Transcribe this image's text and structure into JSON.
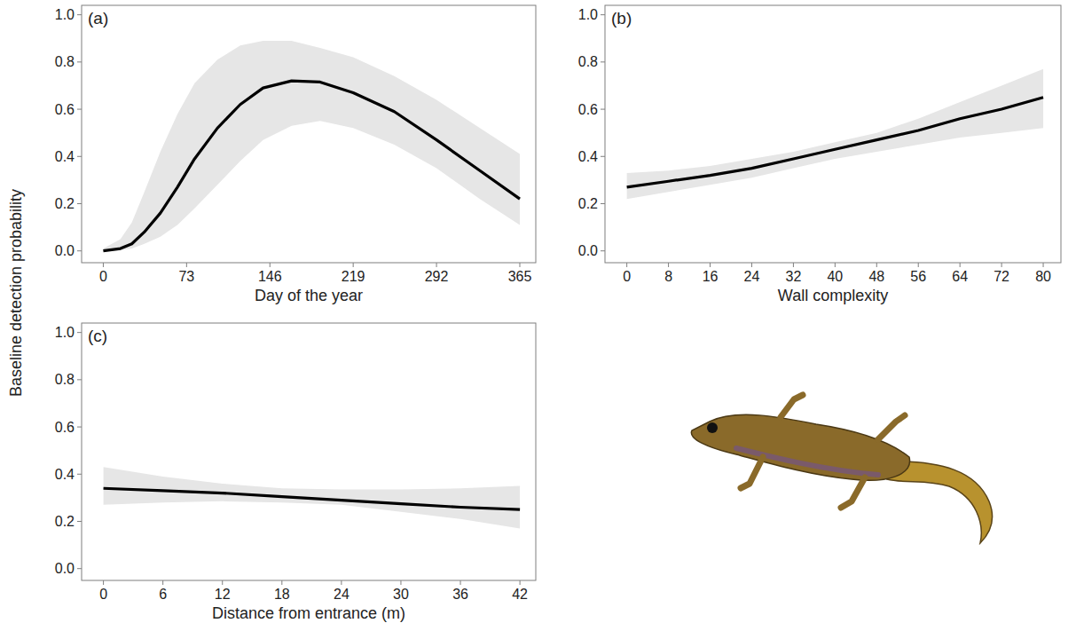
{
  "ylabel": "Baseline detection probability",
  "chart_data": [
    {
      "type": "line",
      "panel_label": "(a)",
      "xlabel": "Day of the year",
      "color": "#000000",
      "grid": false,
      "x": [
        0,
        15,
        25,
        36,
        50,
        65,
        80,
        100,
        120,
        140,
        165,
        190,
        219,
        255,
        292,
        330,
        365
      ],
      "values": [
        0.0,
        0.01,
        0.03,
        0.08,
        0.16,
        0.27,
        0.39,
        0.52,
        0.62,
        0.69,
        0.72,
        0.715,
        0.67,
        0.59,
        0.47,
        0.34,
        0.22
      ],
      "lower": [
        0.0,
        0.003,
        0.01,
        0.03,
        0.06,
        0.11,
        0.18,
        0.28,
        0.38,
        0.47,
        0.53,
        0.55,
        0.52,
        0.45,
        0.35,
        0.22,
        0.11
      ],
      "upper": [
        0.01,
        0.05,
        0.12,
        0.25,
        0.42,
        0.58,
        0.71,
        0.81,
        0.87,
        0.89,
        0.89,
        0.86,
        0.82,
        0.74,
        0.64,
        0.52,
        0.41
      ],
      "xlim": [
        -19,
        379
      ],
      "xticks": [
        0,
        73,
        146,
        219,
        292,
        365
      ],
      "ylim": [
        -0.05,
        1.04
      ],
      "yticks": [
        {
          "value": 0,
          "label": "0.0"
        },
        0.2,
        0.4,
        0.6,
        0.8,
        {
          "value": 1,
          "label": "1.0"
        }
      ]
    },
    {
      "type": "line",
      "panel_label": "(b)",
      "xlabel": "Wall complexity",
      "color": "#000000",
      "grid": false,
      "x": [
        0,
        8,
        16,
        24,
        32,
        40,
        48,
        56,
        64,
        72,
        80
      ],
      "values": [
        0.27,
        0.295,
        0.32,
        0.35,
        0.39,
        0.43,
        0.47,
        0.51,
        0.56,
        0.6,
        0.65
      ],
      "lower": [
        0.22,
        0.25,
        0.28,
        0.31,
        0.35,
        0.39,
        0.42,
        0.45,
        0.48,
        0.5,
        0.52
      ],
      "upper": [
        0.33,
        0.34,
        0.36,
        0.39,
        0.42,
        0.46,
        0.5,
        0.56,
        0.63,
        0.7,
        0.77
      ],
      "xlim": [
        -4.2,
        83.4
      ],
      "xticks": [
        0,
        8,
        16,
        24,
        32,
        40,
        48,
        56,
        64,
        72,
        80
      ],
      "ylim": [
        -0.05,
        1.04
      ],
      "yticks": [
        {
          "value": 0,
          "label": "0.0"
        },
        0.2,
        0.4,
        0.6,
        0.8,
        {
          "value": 1,
          "label": "1.0"
        }
      ]
    },
    {
      "type": "line",
      "panel_label": "(c)",
      "xlabel": "Distance from entrance (m)",
      "color": "#000000",
      "grid": false,
      "x": [
        0,
        6,
        12,
        18,
        24,
        30,
        36,
        42
      ],
      "values": [
        0.34,
        0.33,
        0.32,
        0.305,
        0.29,
        0.275,
        0.26,
        0.25
      ],
      "lower": [
        0.27,
        0.28,
        0.285,
        0.28,
        0.27,
        0.24,
        0.21,
        0.17
      ],
      "upper": [
        0.43,
        0.39,
        0.36,
        0.34,
        0.335,
        0.335,
        0.34,
        0.35
      ],
      "xlim": [
        -2.2,
        43.6
      ],
      "xticks": [
        0,
        6,
        12,
        18,
        24,
        30,
        36,
        42
      ],
      "ylim": [
        -0.05,
        1.04
      ],
      "yticks": [
        {
          "value": 0,
          "label": "0.0"
        },
        0.2,
        0.4,
        0.6,
        0.8,
        {
          "value": 1,
          "label": "1.0"
        }
      ]
    }
  ]
}
